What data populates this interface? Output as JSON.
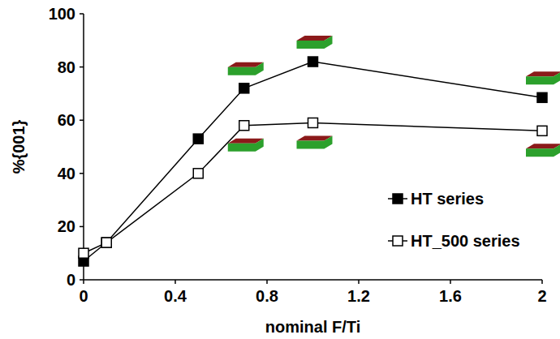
{
  "chart_data": {
    "type": "line",
    "x_label": "nominal F/Ti",
    "y_label": "%{001}",
    "x": [
      0,
      0.1,
      0.5,
      0.7,
      1,
      2
    ],
    "series": [
      {
        "name": "HT series",
        "color": "#000000",
        "marker": "square",
        "line_style": "solid",
        "values": [
          7,
          14,
          53,
          72,
          82,
          68.5
        ]
      },
      {
        "name": "HT_500 series",
        "color": "#000000",
        "marker": "open-square",
        "line_style": "solid",
        "values": [
          10,
          14,
          40,
          58,
          59,
          56
        ]
      }
    ],
    "xlim": [
      0,
      2
    ],
    "xticks": [
      0,
      0.4,
      0.8,
      1.2,
      1.6,
      2
    ],
    "ylim": [
      0,
      100
    ],
    "yticks": [
      0,
      20,
      40,
      60,
      80,
      100
    ],
    "grid": false,
    "legend": "right"
  }
}
